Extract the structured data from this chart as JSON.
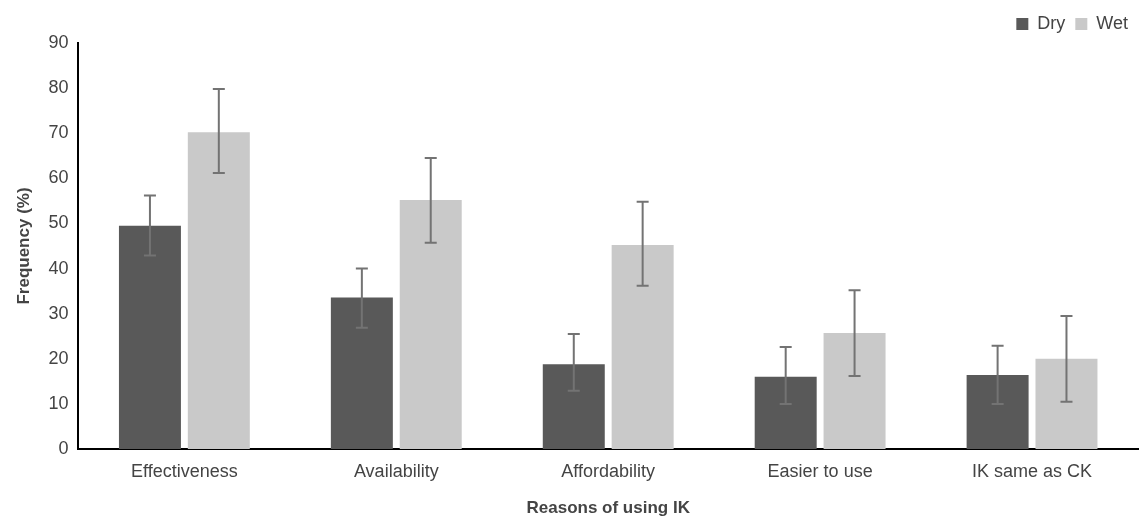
{
  "chart_data": {
    "type": "bar",
    "xlabel": "Reasons of using IK",
    "ylabel": "Frequency (%)",
    "categories": [
      "Effectiveness",
      "Availability",
      "Affordability",
      "Easier to use",
      "IK same as CK"
    ],
    "series": [
      {
        "name": "Dry",
        "color": "#595959",
        "values": [
          49.5,
          33.6,
          18.8,
          16,
          16.4
        ],
        "errors": [
          [
            42.9,
            56.2
          ],
          [
            26.9,
            40
          ],
          [
            12.9,
            25.5
          ],
          [
            10,
            22.6
          ],
          [
            10,
            22.9
          ]
        ]
      },
      {
        "name": "Wet",
        "color": "#c9c9c9",
        "values": [
          70.2,
          55.2,
          45.2,
          25.7,
          20
        ],
        "errors": [
          [
            61.2,
            79.8
          ],
          [
            45.7,
            64.5
          ],
          [
            36.2,
            54.8
          ],
          [
            16.2,
            35.2
          ],
          [
            10.5,
            29.5
          ]
        ]
      }
    ],
    "ylim": [
      0,
      90
    ],
    "yticks": [
      0,
      10,
      20,
      30,
      40,
      50,
      60,
      70,
      80,
      90
    ],
    "grid": false,
    "legend": "top right"
  }
}
